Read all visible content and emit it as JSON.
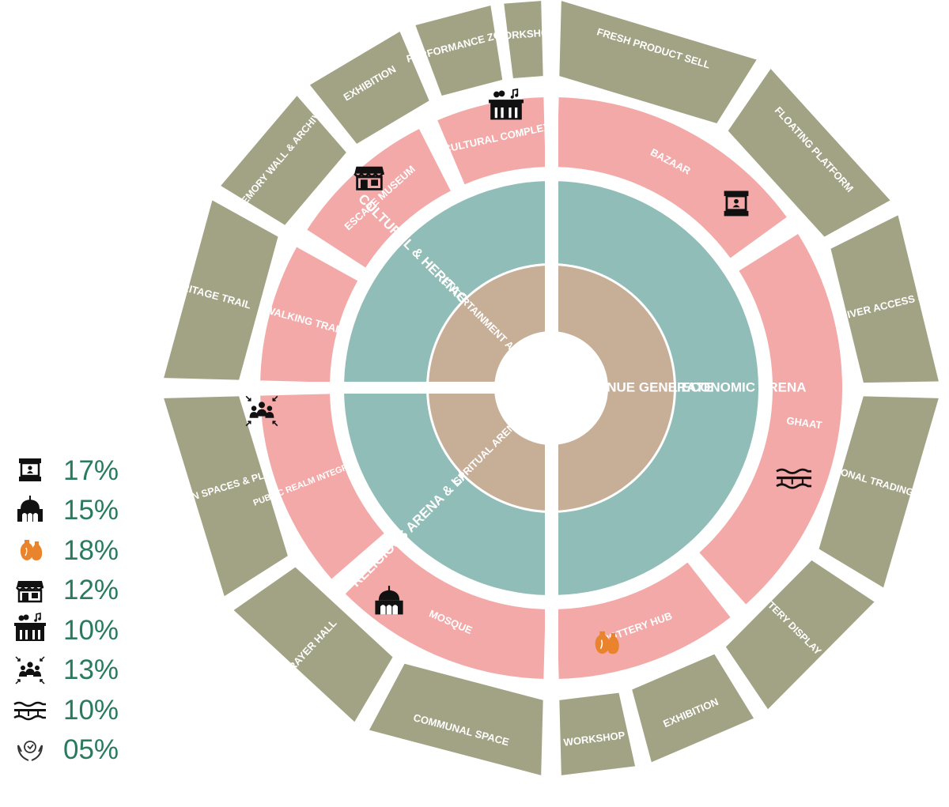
{
  "colors": {
    "outer_ring": "#a2a285",
    "pink_ring": "#f4a9a9",
    "teal_ring": "#90bdb7",
    "tan_ring": "#c7ae97",
    "legend_text": "#2a7a5f",
    "pottery_icon": "#e9832c"
  },
  "diagram": {
    "outer_segments": [
      {
        "label": "FRESH PRODUCT SELL"
      },
      {
        "label": "FLOATING PLATFORM"
      },
      {
        "label": "RIVER ACCESS STEPS"
      },
      {
        "label": "SEASONAL TRADING PLATFORM"
      },
      {
        "label": "POTTERY DISPLAY MARKET"
      },
      {
        "label": "EXHIBITION"
      },
      {
        "label": "WORKSHOP"
      },
      {
        "label": "COMMUNAL SPACE"
      },
      {
        "label": "PRAYER HALL"
      },
      {
        "label": "TRANSITION SPACES & PLAZA"
      },
      {
        "label": "HERITAGE TRAIL"
      },
      {
        "label": "MEMORY WALL & ARCHIVE"
      },
      {
        "label": "EXHIBITION"
      },
      {
        "label": "PERFORMANCE ZONE"
      },
      {
        "label": "WORKSHOP"
      }
    ],
    "pink_segments": [
      {
        "label": "BAZAAR",
        "icon": "shop-stall-icon"
      },
      {
        "label": "GHAAT",
        "icon": "steps-icon"
      },
      {
        "label": "POTTERY HUB",
        "icon": "pottery-icon"
      },
      {
        "label": "MOSQUE",
        "icon": "mosque-icon"
      },
      {
        "label": "PUBLIC REALM INTEGRATION",
        "icon": "crowd-icon"
      },
      {
        "label": "WALKING TRAIL",
        "icon": ""
      },
      {
        "label": "ESCAPE MUSEUM",
        "icon": "storefront-icon"
      },
      {
        "label": "CULTURAL COMPLEX",
        "icon": "theatre-icon"
      }
    ],
    "teal_segments": [
      {
        "label": "CIVIC & ECONOMIC ARENA"
      },
      {
        "label": "RELIGIOUS ARENA & LANDSCAPE"
      },
      {
        "label": "CULTURAL & HERITAGE ARENA"
      }
    ],
    "tan_segments": [
      {
        "label": "REVENUE GENERATE"
      },
      {
        "label": "SPRITUAL ARENA"
      },
      {
        "label": "ENTERTAINMENT ARENA"
      }
    ]
  },
  "legend": [
    {
      "icon": "shop-stall-icon",
      "value": "17%"
    },
    {
      "icon": "mosque-icon",
      "value": "15%"
    },
    {
      "icon": "pottery-icon",
      "value": "18%"
    },
    {
      "icon": "storefront-icon",
      "value": "12%"
    },
    {
      "icon": "theatre-icon",
      "value": "10%"
    },
    {
      "icon": "crowd-icon",
      "value": "13%"
    },
    {
      "icon": "steps-icon",
      "value": "10%"
    },
    {
      "icon": "hands-icon",
      "value": "05%"
    }
  ]
}
